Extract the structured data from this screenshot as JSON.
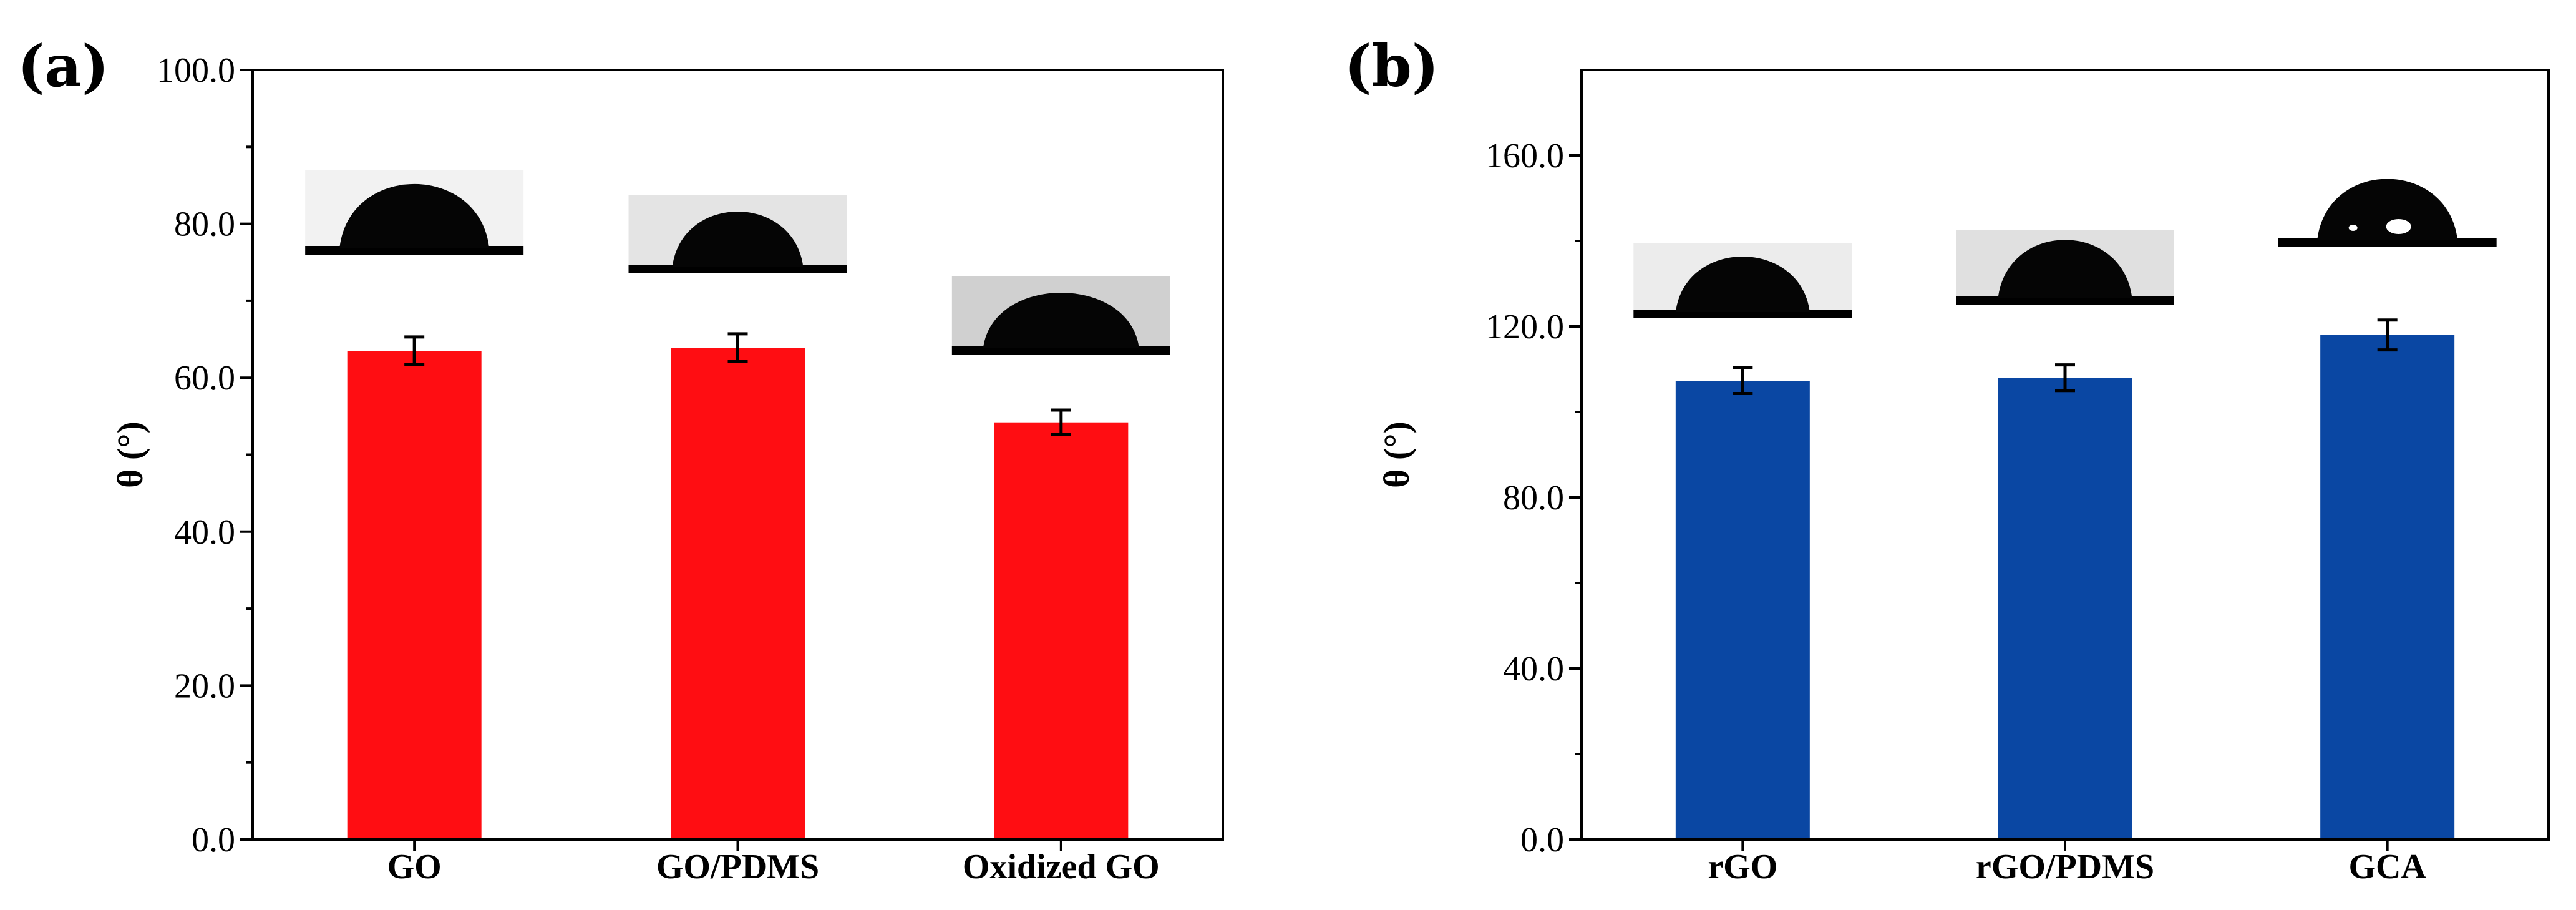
{
  "chart_data": [
    {
      "type": "bar",
      "panel_label": "(a)",
      "categories": [
        "GO",
        "GO/PDMS",
        "Oxidized GO"
      ],
      "values": [
        63.5,
        63.9,
        54.2
      ],
      "errors": [
        1.8,
        1.8,
        1.6
      ],
      "ylabel": "θ (°)",
      "ylim": [
        0,
        100
      ],
      "yticks": [
        0,
        20,
        40,
        60,
        80,
        100
      ],
      "ytick_labels": [
        "0.0",
        "20.0",
        "40.0",
        "60.0",
        "80.0",
        "100.0"
      ],
      "bar_color": "#ff0d12",
      "insets": [
        "water-droplet-photo",
        "water-droplet-photo",
        "water-droplet-photo"
      ]
    },
    {
      "type": "bar",
      "panel_label": "(b)",
      "categories": [
        "rGO",
        "rGO/PDMS",
        "GCA"
      ],
      "values": [
        107.3,
        108.0,
        118.0
      ],
      "errors": [
        3.0,
        3.0,
        3.5
      ],
      "ylabel": "θ (°)",
      "ylim": [
        0,
        180
      ],
      "yticks": [
        0,
        40,
        80,
        120,
        160
      ],
      "ytick_labels": [
        "0.0",
        "40.0",
        "80.0",
        "120.0",
        "160.0"
      ],
      "bar_color": "#0a47a3",
      "insets": [
        "water-droplet-photo",
        "water-droplet-photo",
        "water-droplet-photo"
      ]
    }
  ]
}
